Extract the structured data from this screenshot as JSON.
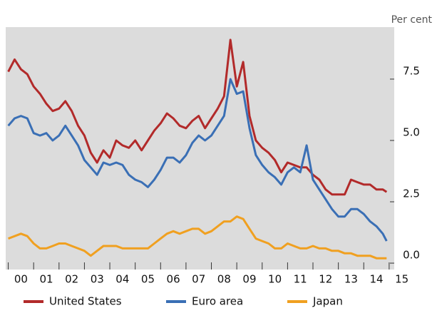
{
  "chart_data": {
    "type": "line",
    "y_axis_label": "Per cent",
    "x": [
      2000,
      2000.25,
      2000.5,
      2000.75,
      2001,
      2001.25,
      2001.5,
      2001.75,
      2002,
      2002.25,
      2002.5,
      2002.75,
      2003,
      2003.25,
      2003.5,
      2003.75,
      2004,
      2004.25,
      2004.5,
      2004.75,
      2005,
      2005.25,
      2005.5,
      2005.75,
      2006,
      2006.25,
      2006.5,
      2006.75,
      2007,
      2007.25,
      2007.5,
      2007.75,
      2008,
      2008.25,
      2008.5,
      2008.75,
      2009,
      2009.25,
      2009.5,
      2009.75,
      2010,
      2010.25,
      2010.5,
      2010.75,
      2011,
      2011.25,
      2011.5,
      2011.75,
      2012,
      2012.25,
      2012.5,
      2012.75,
      2013,
      2013.25,
      2013.5,
      2013.75,
      2014,
      2014.25,
      2014.5,
      2014.75,
      2014.9
    ],
    "series": [
      {
        "name": "United States",
        "color": "#b22a2a",
        "values": [
          7.8,
          8.3,
          7.9,
          7.7,
          7.2,
          6.9,
          6.5,
          6.2,
          6.3,
          6.6,
          6.2,
          5.6,
          5.2,
          4.5,
          4.1,
          4.6,
          4.3,
          5.0,
          4.8,
          4.7,
          5.0,
          4.6,
          5.0,
          5.4,
          5.7,
          6.1,
          5.9,
          5.6,
          5.5,
          5.8,
          6.0,
          5.5,
          5.9,
          6.3,
          6.8,
          9.1,
          7.2,
          8.2,
          6.0,
          5.0,
          4.7,
          4.5,
          4.2,
          3.7,
          4.1,
          4.0,
          3.9,
          3.9,
          3.6,
          3.4,
          3.0,
          2.8,
          2.8,
          2.8,
          3.4,
          3.3,
          3.2,
          3.2,
          3.0,
          3.0,
          2.9
        ]
      },
      {
        "name": "Euro area",
        "color": "#3a6fb5",
        "values": [
          5.6,
          5.9,
          6.0,
          5.9,
          5.3,
          5.2,
          5.3,
          5.0,
          5.2,
          5.6,
          5.2,
          4.8,
          4.2,
          3.9,
          3.6,
          4.1,
          4.0,
          4.1,
          4.0,
          3.6,
          3.4,
          3.3,
          3.1,
          3.4,
          3.8,
          4.3,
          4.3,
          4.1,
          4.4,
          4.9,
          5.2,
          5.0,
          5.2,
          5.6,
          6.0,
          7.5,
          6.9,
          7.0,
          5.5,
          4.4,
          4.0,
          3.7,
          3.5,
          3.2,
          3.7,
          3.9,
          3.7,
          4.8,
          3.4,
          3.0,
          2.6,
          2.2,
          1.9,
          1.9,
          2.2,
          2.2,
          2.0,
          1.7,
          1.5,
          1.2,
          0.9
        ]
      },
      {
        "name": "Japan",
        "color": "#f0a020",
        "values": [
          1.0,
          1.1,
          1.2,
          1.1,
          0.8,
          0.6,
          0.6,
          0.7,
          0.8,
          0.8,
          0.7,
          0.6,
          0.5,
          0.3,
          0.5,
          0.7,
          0.7,
          0.7,
          0.6,
          0.6,
          0.6,
          0.6,
          0.6,
          0.8,
          1.0,
          1.2,
          1.3,
          1.2,
          1.3,
          1.4,
          1.4,
          1.2,
          1.3,
          1.5,
          1.7,
          1.7,
          1.9,
          1.8,
          1.4,
          1.0,
          0.9,
          0.8,
          0.6,
          0.6,
          0.8,
          0.7,
          0.6,
          0.6,
          0.7,
          0.6,
          0.6,
          0.5,
          0.5,
          0.4,
          0.4,
          0.3,
          0.3,
          0.3,
          0.2,
          0.2,
          0.2
        ]
      }
    ],
    "xlim": [
      1999.9,
      2015.2
    ],
    "xticks": [
      {
        "value": 2000,
        "label": "00"
      },
      {
        "value": 2001,
        "label": "01"
      },
      {
        "value": 2002,
        "label": "02"
      },
      {
        "value": 2003,
        "label": "03"
      },
      {
        "value": 2004,
        "label": "04"
      },
      {
        "value": 2005,
        "label": "05"
      },
      {
        "value": 2006,
        "label": "06"
      },
      {
        "value": 2007,
        "label": "07"
      },
      {
        "value": 2008,
        "label": "08"
      },
      {
        "value": 2009,
        "label": "09"
      },
      {
        "value": 2010,
        "label": "10"
      },
      {
        "value": 2011,
        "label": "11"
      },
      {
        "value": 2012,
        "label": "12"
      },
      {
        "value": 2013,
        "label": "13"
      },
      {
        "value": 2014,
        "label": "14"
      },
      {
        "value": 2015,
        "label": "15"
      }
    ],
    "ylim": [
      -0.26,
      9.62
    ],
    "yticks": [
      {
        "value": 0,
        "label": "0.0"
      },
      2.5,
      {
        "value": 5,
        "label": "5.0"
      },
      7.5
    ],
    "grid": false,
    "legend": "bottom"
  }
}
